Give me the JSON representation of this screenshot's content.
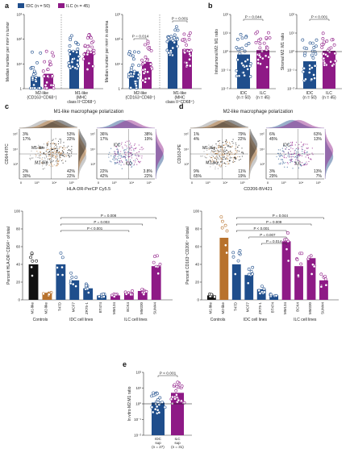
{
  "colors": {
    "idc": "#1f4e8c",
    "ilc": "#8e1a86",
    "m2": "#b8722c",
    "black": "#111111"
  },
  "panel_labels": {
    "a": "a",
    "b": "b",
    "c": "c",
    "d": "d",
    "e": "e"
  },
  "legend": {
    "idc": "IDC (n = 50)",
    "ilc": "ILC (n = 45)"
  },
  "chart_data": [
    {
      "id": "a_tumor",
      "type": "scatter",
      "ylabel": "Median number per mm² in tumor",
      "ylog": true,
      "ylim": [
        1,
        1000
      ],
      "yticks": [
        "1",
        "10¹",
        "10²",
        "10³"
      ],
      "groups": [
        {
          "label": "M2-like\n(CD163⁺CD68⁺)",
          "idc_bar": 3,
          "ilc_bar": 4
        },
        {
          "label": "M1-like\n(MHC\nclass II⁺CD68⁺)",
          "idc_bar": 35,
          "ilc_bar": 30
        }
      ]
    },
    {
      "id": "a_stroma",
      "type": "scatter",
      "ylabel": "Median number per mm² in stroma",
      "ylog": true,
      "ylim": [
        1,
        1000
      ],
      "pvalues": [
        "P = 0.014",
        "P = 0.001"
      ],
      "groups": [
        {
          "label": "M2-like\n(CD163⁺CD68⁺)",
          "idc_bar": 5,
          "ilc_bar": 12
        },
        {
          "label": "M1-like\n(MHC\nclass II⁺CD68⁺)",
          "idc_bar": 90,
          "ilc_bar": 40
        }
      ]
    },
    {
      "id": "b_intra",
      "type": "scatter",
      "ylabel": "Intratumoral M2: M1 ratio",
      "ylog": true,
      "pvalue": "P = 0.044",
      "categories": [
        "IDC\n(n = 50)",
        "ILC\n(n = 45)"
      ],
      "bars": [
        0.7,
        1.2
      ]
    },
    {
      "id": "b_stroma",
      "type": "scatter",
      "ylabel": "Stromal M2: M1 ratio",
      "ylog": true,
      "pvalue": "P < 0.001",
      "categories": [
        "IDC\n(n = 50)",
        "ILC\n(n = 45)"
      ],
      "bars": [
        0.3,
        1.1
      ]
    },
    {
      "id": "c_bar",
      "type": "bar",
      "title": "M1-like macrophage polarization",
      "ylabel": "Percent HLA-DR⁺CD64⁺ of total",
      "ylim": [
        0,
        100
      ],
      "yticks": [
        0,
        20,
        40,
        60,
        80,
        100
      ],
      "categories": [
        "M1-like",
        "M2-like",
        "T47D",
        "MCF7",
        "ZR75-1",
        "BT474",
        "MM134",
        "BCK4",
        "MM330",
        "SUM44"
      ],
      "values": [
        40,
        8,
        40,
        22,
        13,
        5,
        5,
        8,
        10,
        38
      ],
      "groups": [
        "Controls",
        "IDC cell lines",
        "ILC cell lines"
      ],
      "pvalues": [
        "P = 0.008",
        "P = 0.003",
        "P < 0.001"
      ]
    },
    {
      "id": "d_bar",
      "type": "bar",
      "title": "M2-like macrophage polarization",
      "ylabel": "Percent CD163⁺CD206⁺ of total",
      "ylim": [
        0,
        100
      ],
      "yticks": [
        0,
        20,
        40,
        60,
        80,
        100
      ],
      "categories": [
        "M1-like",
        "M2-like",
        "T47D",
        "MCF7",
        "ZR75-1",
        "BT474",
        "MM134",
        "BCK4",
        "MM330",
        "SUM44"
      ],
      "values": [
        5,
        70,
        40,
        28,
        12,
        5,
        66,
        38,
        47,
        22
      ],
      "groups": [
        "Controls",
        "IDC cell lines",
        "ILC cell lines"
      ],
      "pvalues": [
        "P = 0.044",
        "P = 0.009",
        "P < 0.001",
        "P = 0.007",
        "P = 0.014"
      ]
    },
    {
      "id": "e",
      "type": "scatter",
      "ylabel": "In vitro M2:M1 ratio",
      "ylog": true,
      "pvalue": "P < 0.001",
      "categories": [
        "IDC\nsup\n(n = 27)",
        "ILC\nsup\n(n = 31)"
      ],
      "bars": [
        1.2,
        5
      ]
    }
  ],
  "flow_c": {
    "xlabel": "HLA-DR-PerCP Cy5.5",
    "ylabel": "CD64-FITC",
    "left": {
      "q1": "3%",
      "q1b": "17%",
      "q2": "53%",
      "q2b": "22%",
      "q3": "2%",
      "q3b": "30%",
      "q4": "42%",
      "q4b": "22%",
      "m1": "M1-like",
      "m2": "M2-like"
    },
    "right": {
      "q1": "36%",
      "q1b": "17%",
      "q2": "38%",
      "q2b": "19%",
      "q3": "22%",
      "q3b": "42%",
      "q4": "3.8%",
      "q4b": "22%",
      "idc": "IDC",
      "ilc": "ILC"
    }
  },
  "flow_d": {
    "xlabel": "CD206-BV421",
    "ylabel": "CD163-PE",
    "left": {
      "q1": "1%",
      "q1b": "4%",
      "q2": "79%",
      "q2b": "22%",
      "q3": "9%",
      "q3b": "65%",
      "q4": "11%",
      "q4b": "19%",
      "m1": "M1-like",
      "m2": "M2-like"
    },
    "right": {
      "q1": "6%",
      "q1b": "45%",
      "q2": "63%",
      "q2b": "13%",
      "q3": "3%",
      "q3b": "29%",
      "q4": "13%",
      "q4b": "7%",
      "idc": "IDC",
      "ilc": "ILC"
    }
  }
}
